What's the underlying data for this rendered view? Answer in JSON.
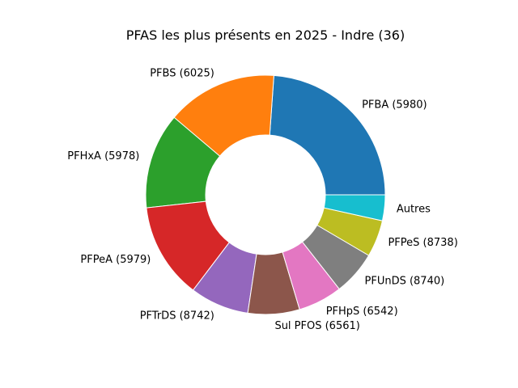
{
  "chart_data": {
    "type": "pie",
    "style": "donut",
    "title": "PFAS les plus présents en 2025 - Indre (36)",
    "start_angle_deg": 0,
    "direction": "counterclockwise",
    "slices": [
      {
        "label": "PFBA (5980)",
        "value": 24.0,
        "color": "#1f77b4"
      },
      {
        "label": "PFBS (6025)",
        "value": 15.0,
        "color": "#ff7f0e"
      },
      {
        "label": "PFHxA (5978)",
        "value": 13.0,
        "color": "#2ca02c"
      },
      {
        "label": "PFPeA (5979)",
        "value": 13.0,
        "color": "#d62728"
      },
      {
        "label": "PFTrDS (8742)",
        "value": 8.0,
        "color": "#9467bd"
      },
      {
        "label": "Sul PFOS (6561)",
        "value": 7.0,
        "color": "#8c564b"
      },
      {
        "label": "PFHpS (6542)",
        "value": 6.0,
        "color": "#e377c2"
      },
      {
        "label": "PFUnDS (8740)",
        "value": 6.0,
        "color": "#7f7f7f"
      },
      {
        "label": "PFPeS (8738)",
        "value": 5.0,
        "color": "#bcbd22"
      },
      {
        "label": "Autres",
        "value": 3.5,
        "color": "#17becf"
      }
    ]
  }
}
